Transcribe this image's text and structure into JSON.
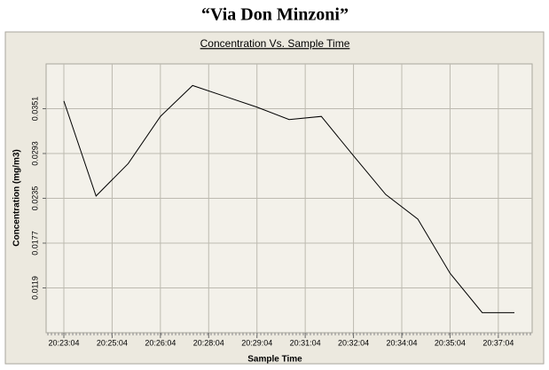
{
  "chart_data": {
    "type": "line",
    "header": "“Via Don Minzoni”",
    "title": "Concentration Vs. Sample Time",
    "x_label": "Sample Time",
    "y_label": "Concentration (mg/m3)",
    "x": [
      0,
      1,
      2,
      3,
      4,
      5,
      6,
      7,
      8,
      9,
      10,
      11,
      12,
      13,
      14
    ],
    "series": [
      {
        "name": "Concentration",
        "color": "#000000",
        "values": [
          0.0361,
          0.0238,
          0.028,
          0.0341,
          0.0381,
          0.0367,
          0.0353,
          0.0337,
          0.0341,
          0.029,
          0.024,
          0.0208,
          0.0138,
          0.0087,
          0.0087
        ]
      }
    ],
    "xlim": [
      0,
      14
    ],
    "xticks": [
      {
        "value": 0,
        "label": "20:23:04"
      },
      {
        "value": 1.5,
        "label": "20:25:04"
      },
      {
        "value": 3,
        "label": "20:26:04"
      },
      {
        "value": 4.5,
        "label": "20:28:04"
      },
      {
        "value": 6,
        "label": "20:29:04"
      },
      {
        "value": 7.5,
        "label": "20:31:04"
      },
      {
        "value": 9,
        "label": "20:32:04"
      },
      {
        "value": 10.5,
        "label": "20:34:04"
      },
      {
        "value": 12,
        "label": "20:35:04"
      },
      {
        "value": 13.5,
        "label": "20:37:04"
      }
    ],
    "ylim": [
      0.0061,
      0.0409
    ],
    "yticks": [
      0.0119,
      0.0177,
      0.0235,
      0.0293,
      0.0351
    ],
    "grid": true
  }
}
